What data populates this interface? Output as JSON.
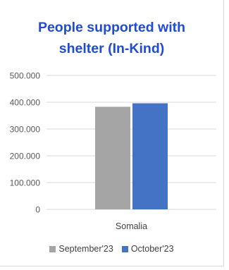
{
  "chart_data": {
    "type": "bar",
    "title": "People supported with shelter (In-Kind)",
    "title_lines": [
      "People supported with",
      "shelter (In-Kind)"
    ],
    "categories": [
      "Somalia"
    ],
    "series": [
      {
        "name": "September'23",
        "values": [
          383000
        ],
        "color": "#a5a5a5"
      },
      {
        "name": "October'23",
        "values": [
          396000
        ],
        "color": "#4472c4"
      }
    ],
    "ylim": [
      0,
      500000
    ],
    "yticks": [
      {
        "value": 0,
        "label": "0"
      },
      {
        "value": 100000,
        "label": "100.000"
      },
      {
        "value": 200000,
        "label": "200.000"
      },
      {
        "value": 300000,
        "label": "300.000"
      },
      {
        "value": 400000,
        "label": "400.000"
      },
      {
        "value": 500000,
        "label": "500.000"
      }
    ],
    "xlabel": "",
    "ylabel": "",
    "grid": true,
    "legend_position": "bottom"
  },
  "colors": {
    "title": "#1f4bd6",
    "gridline": "#d9d9d9",
    "tick_text": "#595959"
  }
}
